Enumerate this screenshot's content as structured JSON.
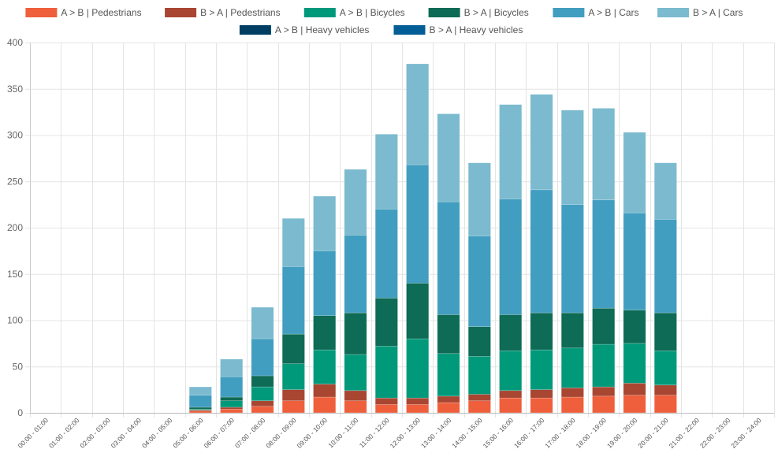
{
  "chart_data": {
    "type": "bar",
    "stacked": true,
    "title": "",
    "xlabel": "",
    "ylabel": "",
    "ylim": [
      0,
      400
    ],
    "y_ticks": [
      0,
      50,
      100,
      150,
      200,
      250,
      300,
      350,
      400
    ],
    "grid": true,
    "legend_position": "top-center",
    "categories": [
      "00:00 - 01:00",
      "01:00 - 02:00",
      "02:00 - 03:00",
      "03:00 - 04:00",
      "04:00 - 05:00",
      "05:00 - 06:00",
      "06:00 - 07:00",
      "07:00 - 08:00",
      "08:00 - 09:00",
      "09:00 - 10:00",
      "10:00 - 11:00",
      "11:00 - 12:00",
      "12:00 - 13:00",
      "13:00 - 14:00",
      "14:00 - 15:00",
      "15:00 - 16:00",
      "16:00 - 17:00",
      "17:00 - 18:00",
      "18:00 - 19:00",
      "19:00 - 20:00",
      "20:00 - 21:00",
      "21:00 - 22:00",
      "22:00 - 23:00",
      "23:00 - 24:00"
    ],
    "series": [
      {
        "name": "A > B | Pedestrians",
        "color": "#ef5f3c",
        "values": [
          0,
          0,
          0,
          0,
          0,
          2,
          4,
          7,
          13,
          17,
          13,
          9,
          9,
          11,
          13,
          16,
          16,
          17,
          18,
          19,
          19,
          0,
          0,
          0
        ]
      },
      {
        "name": "B > A | Pedestrians",
        "color": "#a84632",
        "values": [
          0,
          0,
          0,
          0,
          0,
          1,
          2,
          6,
          12,
          14,
          11,
          7,
          7,
          7,
          7,
          8,
          9,
          10,
          10,
          13,
          11,
          0,
          0,
          0
        ]
      },
      {
        "name": "A > B | Bicycles",
        "color": "#00997a",
        "values": [
          0,
          0,
          0,
          0,
          0,
          1,
          7,
          15,
          28,
          37,
          39,
          56,
          64,
          46,
          41,
          43,
          43,
          43,
          46,
          43,
          37,
          0,
          0,
          0
        ]
      },
      {
        "name": "B > A | Bicycles",
        "color": "#0e6b55",
        "values": [
          0,
          0,
          0,
          0,
          0,
          2,
          4,
          12,
          32,
          37,
          45,
          52,
          60,
          42,
          32,
          39,
          40,
          38,
          39,
          36,
          41,
          0,
          0,
          0
        ]
      },
      {
        "name": "A > B | Cars",
        "color": "#429ec0",
        "values": [
          0,
          0,
          0,
          0,
          0,
          13,
          22,
          40,
          73,
          70,
          84,
          96,
          128,
          122,
          98,
          125,
          133,
          117,
          117,
          105,
          101,
          0,
          0,
          0
        ]
      },
      {
        "name": "B > A | Cars",
        "color": "#7bbacf",
        "values": [
          0,
          0,
          0,
          0,
          0,
          9,
          19,
          34,
          52,
          59,
          71,
          81,
          109,
          95,
          79,
          102,
          103,
          102,
          99,
          87,
          61,
          0,
          0,
          0
        ]
      },
      {
        "name": "A > B | Heavy vehicles",
        "color": "#013e63",
        "values": [
          0,
          0,
          0,
          0,
          0,
          0,
          0,
          0,
          0,
          0,
          0,
          0,
          0,
          0,
          0,
          0,
          0,
          0,
          0,
          0,
          0,
          0,
          0,
          0
        ]
      },
      {
        "name": "B > A | Heavy vehicles",
        "color": "#035d96",
        "values": [
          0,
          0,
          0,
          0,
          0,
          0,
          0,
          0,
          0,
          0,
          0,
          0,
          0,
          0,
          0,
          0,
          0,
          0,
          0,
          0,
          0,
          0,
          0,
          0
        ]
      }
    ]
  }
}
